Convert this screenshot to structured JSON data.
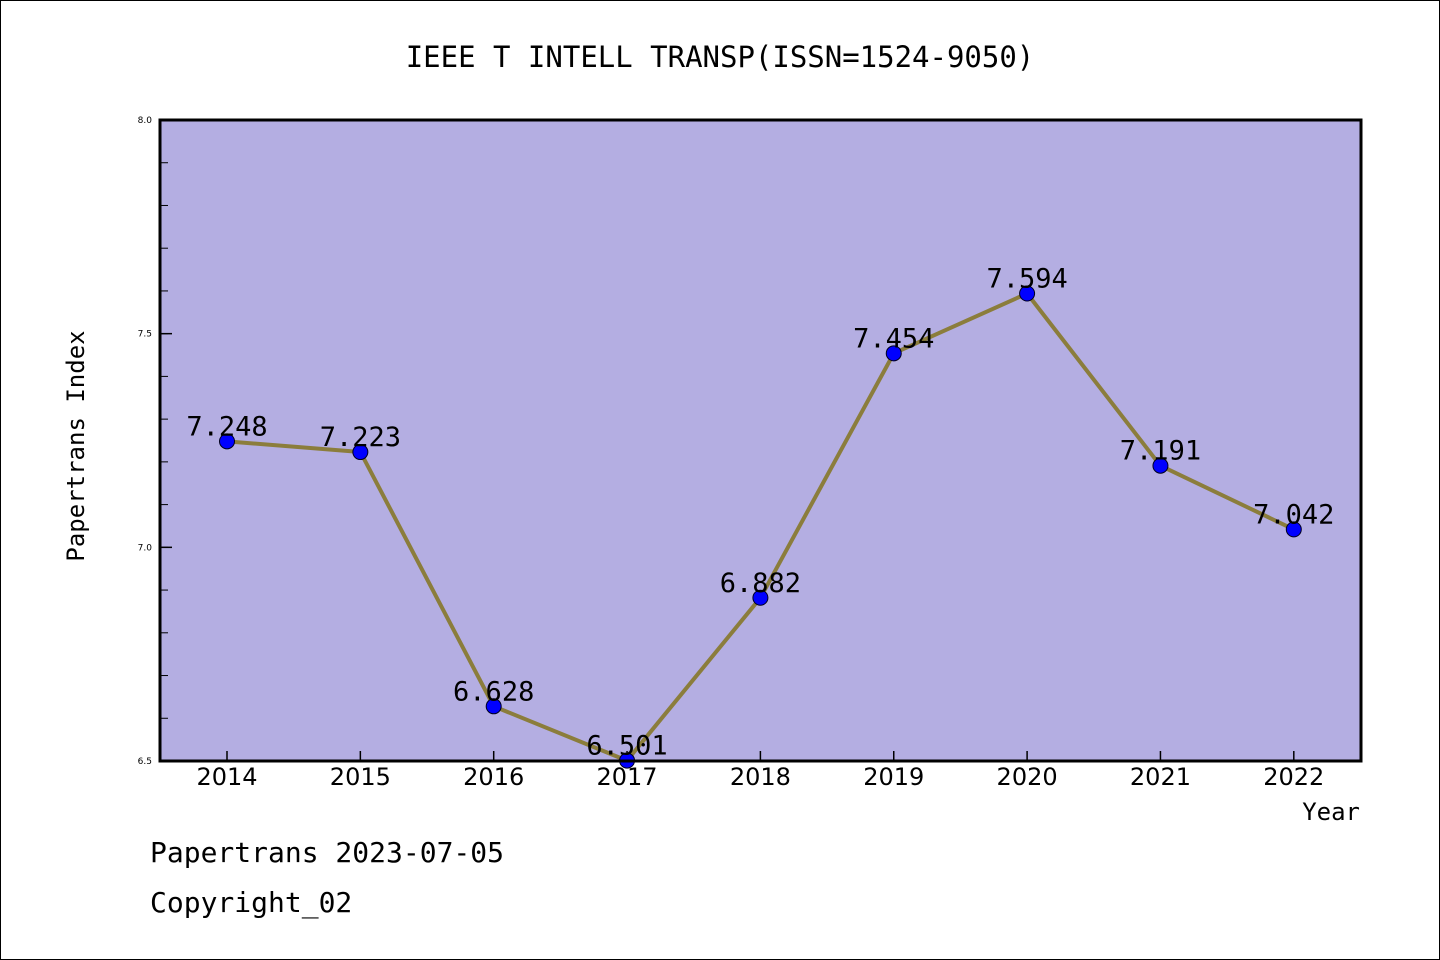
{
  "chart_data": {
    "type": "line",
    "title": "IEEE T INTELL TRANSP(ISSN=1524-9050)",
    "xlabel": "Year",
    "ylabel": "Papertrans Index",
    "categories": [
      "2014",
      "2015",
      "2016",
      "2017",
      "2018",
      "2019",
      "2020",
      "2021",
      "2022"
    ],
    "values": [
      7.248,
      7.223,
      6.628,
      6.501,
      6.882,
      7.454,
      7.594,
      7.191,
      7.042
    ],
    "value_labels": [
      "7.248",
      "7.223",
      "6.628",
      "6.501",
      "6.882",
      "7.454",
      "7.594",
      "7.191",
      "7.042"
    ],
    "ylim": [
      6.5,
      8.0
    ],
    "yticks": [
      "6.5",
      "7.0",
      "7.5",
      "8.0"
    ],
    "grid": false,
    "colors": {
      "plot_background": "#b4aee2",
      "line": "#8b7d3c",
      "marker": "#0000ff"
    }
  },
  "footer": {
    "date_text": "Papertrans 2023-07-05",
    "copyright_text": "Copyright_02"
  }
}
